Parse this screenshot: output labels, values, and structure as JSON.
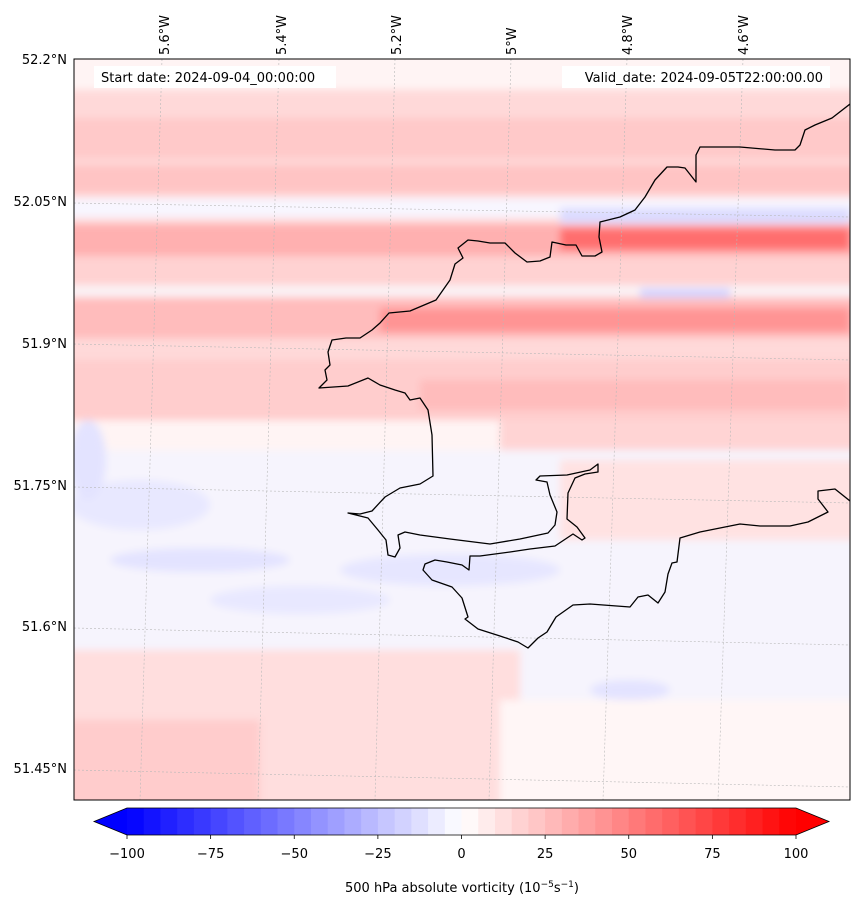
{
  "map": {
    "start_label": "Start date: 2024-09-04_00:00:00",
    "valid_label": "Valid_date: 2024-09-05T22:00:00.00",
    "lon_ticks": [
      "5.6°W",
      "5.4°W",
      "5.2°W",
      "5°W",
      "4.8°W",
      "4.6°W"
    ],
    "lat_ticks": [
      "52.2°N",
      "52.05°N",
      "51.9°N",
      "51.75°N",
      "51.6°N",
      "51.45°N"
    ],
    "colors": {
      "land_outline": "#000000",
      "gridline": "#b0b0b0",
      "frame": "#000000"
    }
  },
  "colorbar": {
    "label_prefix": "500 hPa absolute vorticity (10",
    "label_exp1": "−5",
    "label_mid": "s",
    "label_exp2": "−1",
    "label_suffix": ")",
    "tick_labels": [
      "−100",
      "−75",
      "−50",
      "−25",
      "0",
      "25",
      "50",
      "75",
      "100"
    ],
    "vmin": -100,
    "vmax": 100,
    "levels": 41,
    "cmap": "bwr"
  }
}
